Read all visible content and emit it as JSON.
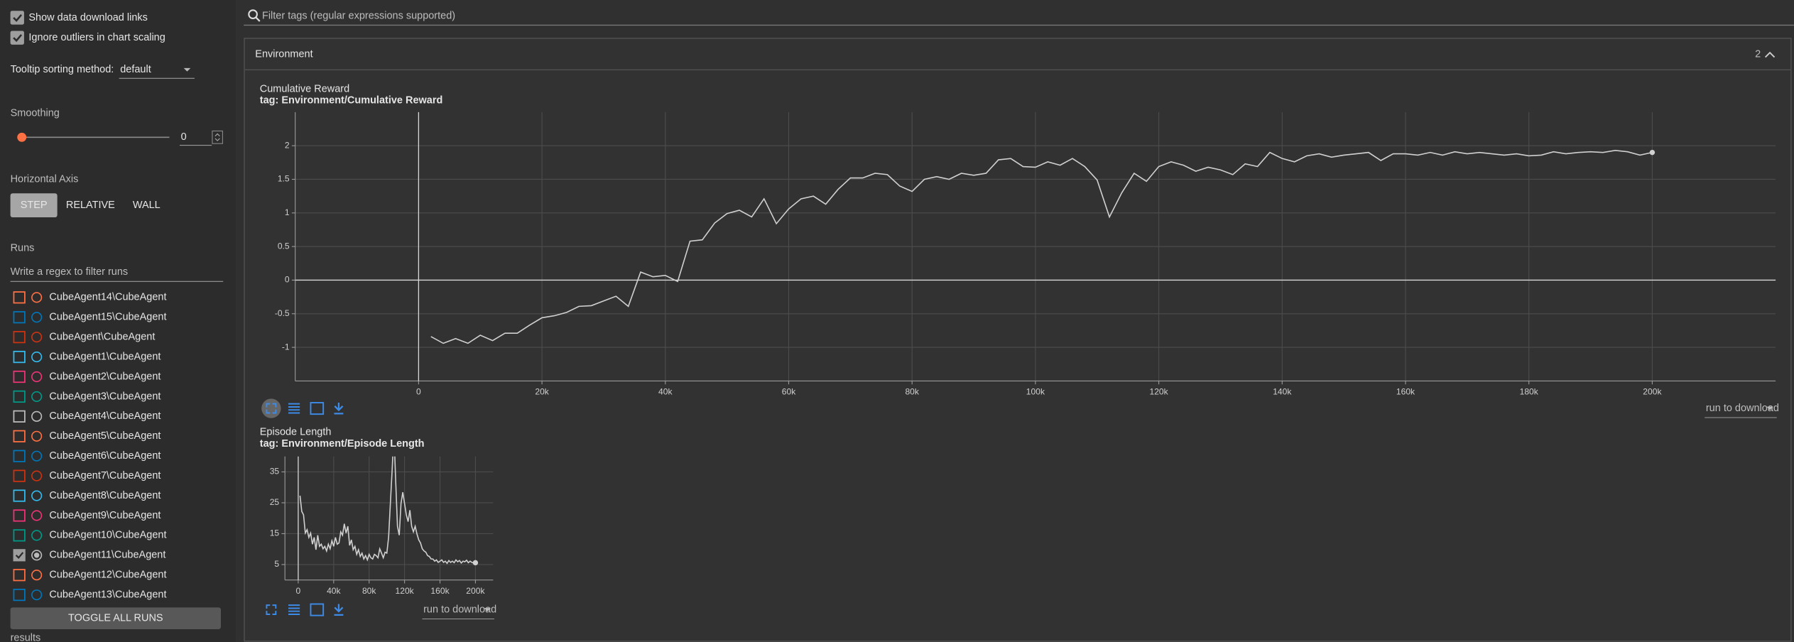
{
  "sidebar": {
    "checkboxes": [
      {
        "label": "Show data download links",
        "checked": true
      },
      {
        "label": "Ignore outliers in chart scaling",
        "checked": true
      }
    ],
    "tooltip_label": "Tooltip sorting method:",
    "tooltip_value": "default",
    "smoothing_label": "Smoothing",
    "smoothing_value": 0,
    "horizontal_axis_label": "Horizontal Axis",
    "axis_buttons": [
      "STEP",
      "RELATIVE",
      "WALL"
    ],
    "axis_selected": 0,
    "runs_label": "Runs",
    "runs_filter_placeholder": "Write a regex to filter runs",
    "runs": [
      {
        "name": "CubeAgent14\\CubeAgent",
        "color": "#ff7043",
        "checked": false
      },
      {
        "name": "CubeAgent15\\CubeAgent",
        "color": "#0077bb",
        "checked": false
      },
      {
        "name": "CubeAgent\\CubeAgent",
        "color": "#cc3311",
        "checked": false
      },
      {
        "name": "CubeAgent1\\CubeAgent",
        "color": "#33bbee",
        "checked": false
      },
      {
        "name": "CubeAgent2\\CubeAgent",
        "color": "#ee3377",
        "checked": false
      },
      {
        "name": "CubeAgent3\\CubeAgent",
        "color": "#009988",
        "checked": false
      },
      {
        "name": "CubeAgent4\\CubeAgent",
        "color": "#bbbbbb",
        "checked": false
      },
      {
        "name": "CubeAgent5\\CubeAgent",
        "color": "#ff7043",
        "checked": false
      },
      {
        "name": "CubeAgent6\\CubeAgent",
        "color": "#0077bb",
        "checked": false
      },
      {
        "name": "CubeAgent7\\CubeAgent",
        "color": "#cc3311",
        "checked": false
      },
      {
        "name": "CubeAgent8\\CubeAgent",
        "color": "#33bbee",
        "checked": false
      },
      {
        "name": "CubeAgent9\\CubeAgent",
        "color": "#ee3377",
        "checked": false
      },
      {
        "name": "CubeAgent10\\CubeAgent",
        "color": "#009988",
        "checked": false
      },
      {
        "name": "CubeAgent11\\CubeAgent",
        "color": "#bbbbbb",
        "checked": true
      },
      {
        "name": "CubeAgent12\\CubeAgent",
        "color": "#ff7043",
        "checked": false
      },
      {
        "name": "CubeAgent13\\CubeAgent",
        "color": "#0077bb",
        "checked": false
      }
    ],
    "toggle_button": "TOGGLE ALL RUNS",
    "footer": "results"
  },
  "filter_placeholder": "Filter tags (regular expressions supported)",
  "section": {
    "title": "Environment",
    "count": 2,
    "download_label": "run to download"
  },
  "chart_data": [
    {
      "type": "line",
      "title": "Cumulative Reward",
      "subtitle": "tag: Environment/Cumulative Reward",
      "color": "#d0d0d0",
      "grid": true,
      "x": [
        2000,
        4000,
        6000,
        8000,
        10000,
        12000,
        14000,
        16000,
        18000,
        20000,
        22000,
        24000,
        26000,
        28000,
        30000,
        32000,
        34000,
        36000,
        38000,
        40000,
        42000,
        44000,
        46000,
        48000,
        50000,
        52000,
        54000,
        56000,
        58000,
        60000,
        62000,
        64000,
        66000,
        68000,
        70000,
        72000,
        74000,
        76000,
        78000,
        80000,
        82000,
        84000,
        86000,
        88000,
        90000,
        92000,
        94000,
        96000,
        98000,
        100000,
        102000,
        104000,
        106000,
        108000,
        110000,
        112000,
        114000,
        116000,
        118000,
        120000,
        122000,
        124000,
        126000,
        128000,
        130000,
        132000,
        134000,
        136000,
        138000,
        140000,
        142000,
        144000,
        146000,
        148000,
        150000,
        152000,
        154000,
        156000,
        158000,
        160000,
        162000,
        164000,
        166000,
        168000,
        170000,
        172000,
        174000,
        176000,
        178000,
        180000,
        182000,
        184000,
        186000,
        188000,
        190000,
        192000,
        194000,
        196000,
        198000,
        200000
      ],
      "values": [
        -0.84,
        -0.94,
        -0.87,
        -0.94,
        -0.82,
        -0.9,
        -0.79,
        -0.79,
        -0.67,
        -0.56,
        -0.53,
        -0.48,
        -0.39,
        -0.38,
        -0.31,
        -0.24,
        -0.39,
        0.12,
        0.05,
        0.07,
        -0.02,
        0.58,
        0.6,
        0.85,
        0.99,
        1.04,
        0.94,
        1.21,
        0.84,
        1.06,
        1.21,
        1.25,
        1.13,
        1.35,
        1.52,
        1.52,
        1.59,
        1.57,
        1.4,
        1.32,
        1.5,
        1.54,
        1.5,
        1.59,
        1.56,
        1.59,
        1.79,
        1.81,
        1.69,
        1.68,
        1.76,
        1.71,
        1.81,
        1.69,
        1.49,
        0.94,
        1.3,
        1.59,
        1.47,
        1.69,
        1.76,
        1.71,
        1.62,
        1.68,
        1.64,
        1.57,
        1.73,
        1.69,
        1.9,
        1.81,
        1.76,
        1.85,
        1.88,
        1.83,
        1.86,
        1.88,
        1.9,
        1.78,
        1.88,
        1.88,
        1.86,
        1.9,
        1.86,
        1.91,
        1.88,
        1.9,
        1.88,
        1.86,
        1.88,
        1.85,
        1.86,
        1.91,
        1.88,
        1.9,
        1.91,
        1.9,
        1.93,
        1.91,
        1.86,
        1.9
      ],
      "xlim": [
        -20000,
        220000
      ],
      "ylim": [
        -1.5,
        2.5
      ],
      "xticks": [
        0,
        {
          "value": 20000,
          "label": "20k"
        },
        {
          "value": 40000,
          "label": "40k"
        },
        {
          "value": 60000,
          "label": "60k"
        },
        {
          "value": 80000,
          "label": "80k"
        },
        {
          "value": 100000,
          "label": "100k"
        },
        {
          "value": 120000,
          "label": "120k"
        },
        {
          "value": 140000,
          "label": "140k"
        },
        {
          "value": 160000,
          "label": "160k"
        },
        {
          "value": 180000,
          "label": "180k"
        },
        {
          "value": 200000,
          "label": "200k"
        }
      ],
      "yticks": [
        -1,
        -0.5,
        0,
        0.5,
        1,
        1.5,
        2
      ]
    },
    {
      "type": "line",
      "title": "Episode Length",
      "subtitle": "tag: Environment/Episode Length",
      "color": "#d0d0d0",
      "grid": true,
      "x": [
        2000,
        4000,
        6000,
        8000,
        10000,
        12000,
        14000,
        16000,
        18000,
        20000,
        22000,
        24000,
        26000,
        28000,
        30000,
        32000,
        34000,
        36000,
        38000,
        40000,
        42000,
        44000,
        46000,
        48000,
        50000,
        52000,
        54000,
        56000,
        58000,
        60000,
        62000,
        64000,
        66000,
        68000,
        70000,
        72000,
        74000,
        76000,
        78000,
        80000,
        82000,
        84000,
        86000,
        88000,
        90000,
        92000,
        94000,
        96000,
        98000,
        100000,
        102000,
        104000,
        106000,
        108000,
        110000,
        112000,
        114000,
        116000,
        118000,
        120000,
        122000,
        124000,
        126000,
        128000,
        130000,
        132000,
        134000,
        136000,
        138000,
        140000,
        142000,
        144000,
        146000,
        148000,
        150000,
        152000,
        154000,
        156000,
        158000,
        160000,
        162000,
        164000,
        166000,
        168000,
        170000,
        172000,
        174000,
        176000,
        178000,
        180000,
        182000,
        184000,
        186000,
        188000,
        190000,
        192000,
        194000,
        196000,
        198000,
        200000
      ],
      "values": [
        27.3,
        22.2,
        21.1,
        15.2,
        16.3,
        13.8,
        15.2,
        11.6,
        13.8,
        9.8,
        14.5,
        10.9,
        11.6,
        10.1,
        10.9,
        9.4,
        11.6,
        10.1,
        12.7,
        10.9,
        13.8,
        11.6,
        12,
        15.6,
        14.5,
        18.2,
        15.2,
        17.4,
        11.2,
        13,
        9.8,
        10.9,
        8.3,
        9.8,
        7.6,
        8.7,
        6.8,
        7.9,
        6.5,
        8.3,
        7.2,
        6.8,
        8.3,
        7.9,
        7.2,
        10.1,
        8.7,
        7.2,
        9,
        8.7,
        13.8,
        24.8,
        35.7,
        48,
        32,
        17.4,
        14.5,
        24.8,
        28.4,
        24.8,
        21.1,
        18.9,
        22.6,
        17.4,
        15.6,
        17.4,
        14.9,
        13,
        12,
        10.1,
        9.4,
        9,
        7.9,
        7.6,
        6.8,
        6.8,
        6.1,
        6.5,
        5.7,
        6.1,
        6.5,
        5.7,
        6.1,
        5.4,
        6.3,
        5.7,
        6.1,
        5.6,
        6.5,
        5.9,
        6.3,
        5.5,
        6.1,
        5.9,
        6.4,
        5.6,
        6.1,
        5.7,
        5.5,
        5.6
      ],
      "xlim": [
        -15000,
        220000
      ],
      "ylim": [
        0,
        40
      ],
      "xticks": [
        0,
        {
          "value": 40000,
          "label": "40k"
        },
        {
          "value": 80000,
          "label": "80k"
        },
        {
          "value": 120000,
          "label": "120k"
        },
        {
          "value": 160000,
          "label": "160k"
        },
        {
          "value": 200000,
          "label": "200k"
        }
      ],
      "yticks": [
        5,
        15,
        25,
        35
      ]
    }
  ]
}
